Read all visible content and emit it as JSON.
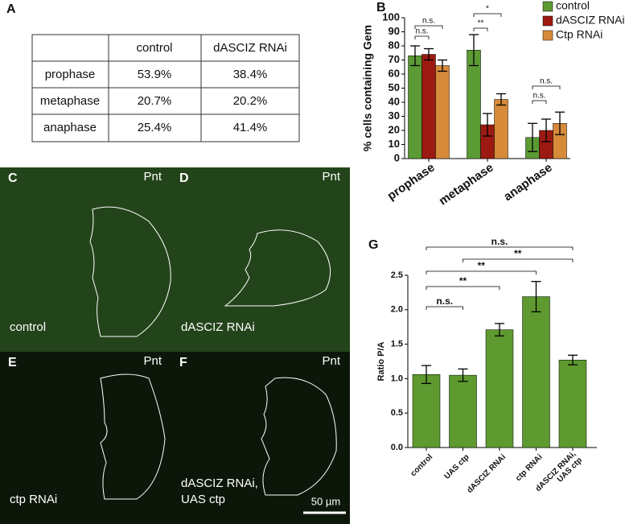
{
  "table": {
    "label": "A",
    "header": [
      "control",
      "dASCIZ RNAi"
    ],
    "rows": [
      [
        "prophase",
        "53.9%",
        "38.4%"
      ],
      [
        "metaphase",
        "20.7%",
        "20.2%"
      ],
      [
        "anaphase",
        "25.4%",
        "41.4%"
      ]
    ]
  },
  "images": [
    {
      "label": "C",
      "marker": "Pnt",
      "caption": [
        "control"
      ]
    },
    {
      "label": "D",
      "marker": "Pnt",
      "caption": [
        "dASCIZ RNAi"
      ]
    },
    {
      "label": "E",
      "marker": "Pnt",
      "caption": [
        "ctp RNAi"
      ]
    },
    {
      "label": "F",
      "marker": "Pnt",
      "caption": [
        "dASCIZ RNAi,",
        "UAS ctp"
      ],
      "scale_bar": "50 µm"
    }
  ],
  "chart_data": [
    {
      "type": "bar",
      "label": "B",
      "y_label": "% cells containing Gem",
      "categories": [
        "prophase",
        "metaphase",
        "anaphase"
      ],
      "series": [
        {
          "name": "control",
          "color": "#5c9a34",
          "values": [
            73,
            77,
            15
          ],
          "errors": [
            7,
            11,
            10
          ]
        },
        {
          "name": "dASCIZ RNAi",
          "color": "#9c1a12",
          "values": [
            74,
            24,
            20
          ],
          "errors": [
            4,
            8,
            8
          ]
        },
        {
          "name": "Ctp RNAi",
          "color": "#d68a3a",
          "values": [
            66,
            42,
            25
          ],
          "errors": [
            4,
            4,
            8
          ]
        }
      ],
      "ylim": [
        0,
        100
      ],
      "yticks": [
        0,
        10,
        20,
        30,
        40,
        50,
        60,
        70,
        80,
        90,
        100
      ],
      "legend": "right",
      "annotations": [
        "n.s.",
        "n.s.",
        "*",
        "**",
        "n.s.",
        "n.s."
      ]
    },
    {
      "type": "bar",
      "label": "G",
      "y_label": "Ratio P/A",
      "categories": [
        "control",
        "UAS ctp",
        "dASCIZ RNAi",
        "ctp RNAi",
        "dASCIZ RNAi,\nUAS ctp"
      ],
      "series": [
        {
          "color": "#5e9a2f",
          "values": [
            1.06,
            1.05,
            1.71,
            2.19,
            1.27
          ],
          "errors": [
            0.13,
            0.09,
            0.09,
            0.22,
            0.07
          ]
        }
      ],
      "ylim": [
        0,
        2.5
      ],
      "yticks": [
        {
          "value": 0,
          "label": "0.0"
        },
        {
          "value": 0.5,
          "label": "0.5"
        },
        {
          "value": 1,
          "label": "1.0"
        },
        {
          "value": 1.5,
          "label": "1.5"
        },
        {
          "value": 2,
          "label": "2.0"
        },
        {
          "value": 2.5,
          "label": "2.5"
        }
      ],
      "annotations": [
        "n.s.",
        "**",
        "**",
        "**",
        "n.s."
      ]
    }
  ]
}
